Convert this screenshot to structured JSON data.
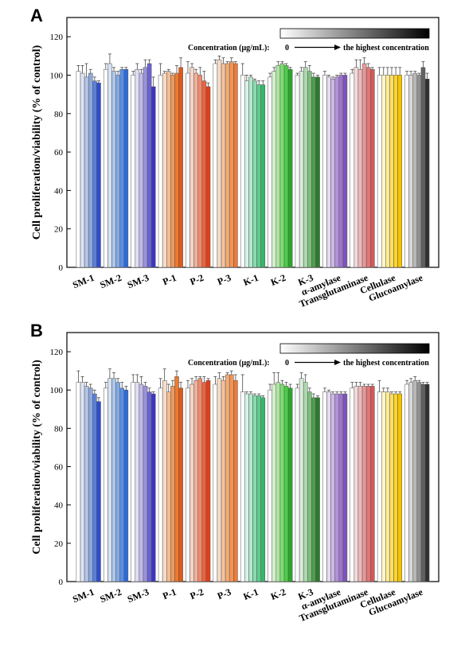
{
  "chart_data": [
    {
      "panel": "A",
      "type": "bar",
      "ylabel": "Cell proliferation/viability (% of control)",
      "ylim": [
        0,
        130
      ],
      "yticks": [
        0,
        20,
        40,
        60,
        80,
        100,
        120
      ],
      "legend": {
        "label": "Concentration (μg/mL):",
        "start": "0",
        "end": "the highest concentration",
        "placement": "top-right"
      },
      "groups": [
        {
          "name": "SM-1",
          "colors": [
            "#ffffff",
            "#dce3f2",
            "#b6c5e6",
            "#8ea8dc",
            "#5d80d6",
            "#2b4fd0"
          ],
          "values": [
            102,
            101,
            99,
            101,
            97,
            96
          ],
          "errors": [
            3,
            4,
            7,
            2,
            2,
            1
          ]
        },
        {
          "name": "SM-2",
          "colors": [
            "#ffffff",
            "#d6e4f4",
            "#aec8ec",
            "#83aae6",
            "#5a8ee6",
            "#2f6ad6"
          ],
          "values": [
            103,
            106,
            102,
            100,
            103,
            103
          ],
          "errors": [
            3,
            5,
            2,
            2,
            1,
            1
          ]
        },
        {
          "name": "SM-3",
          "colors": [
            "#ffffff",
            "#e0ddf2",
            "#c1bbe8",
            "#9a93dc",
            "#6a62d2",
            "#3b35c4"
          ],
          "values": [
            100,
            103,
            101,
            104,
            106,
            94
          ],
          "errors": [
            2,
            3,
            2,
            4,
            2,
            5
          ]
        },
        {
          "name": "P-1",
          "colors": [
            "#ffffff",
            "#f7dcc8",
            "#f2bd96",
            "#ed9a60",
            "#ec7b30",
            "#e0591a"
          ],
          "values": [
            100,
            101,
            102,
            100,
            101,
            104
          ],
          "errors": [
            6,
            1,
            1,
            1,
            4,
            5
          ]
        },
        {
          "name": "P-2",
          "colors": [
            "#ffffff",
            "#f7d4c8",
            "#f2b09a",
            "#ee8a6c",
            "#ea6440",
            "#e03e1a"
          ],
          "values": [
            101,
            104,
            101,
            100,
            97,
            94
          ],
          "errors": [
            6,
            2,
            2,
            4,
            5,
            2
          ]
        },
        {
          "name": "P-3",
          "colors": [
            "#ffffff",
            "#f8dcc6",
            "#f4c39c",
            "#f2ab76",
            "#f29556",
            "#ee7a36"
          ],
          "values": [
            106,
            108,
            106,
            106,
            107,
            106
          ],
          "errors": [
            2,
            2,
            3,
            1,
            2,
            1
          ]
        },
        {
          "name": "K-1",
          "colors": [
            "#ffffff",
            "#d8f2e6",
            "#b4e8cc",
            "#88dcae",
            "#5ccd8e",
            "#33b86a"
          ],
          "values": [
            100,
            97,
            99,
            97,
            95,
            95
          ],
          "errors": [
            6,
            3,
            1,
            1,
            2,
            2
          ]
        },
        {
          "name": "K-2",
          "colors": [
            "#ffffff",
            "#d4f0cc",
            "#acE6a0",
            "#7edc72",
            "#4ccc48",
            "#2aa62a"
          ],
          "values": [
            99,
            102,
            105,
            106,
            105,
            103
          ],
          "errors": [
            2,
            2,
            2,
            1,
            1,
            1
          ]
        },
        {
          "name": "K-3",
          "colors": [
            "#ffffff",
            "#d8ecd8",
            "#aed8ae",
            "#7fbe7f",
            "#4e9e4e",
            "#2e7a2e"
          ],
          "values": [
            100,
            102,
            104,
            102,
            99,
            99
          ],
          "errors": [
            1,
            2,
            3,
            3,
            2,
            1
          ]
        },
        {
          "name": "α-amylase",
          "colors": [
            "#ffffff",
            "#e6dcf2",
            "#cdb8e6",
            "#b292d8",
            "#9a74cc",
            "#7e52bc"
          ],
          "values": [
            100,
            99,
            98,
            99,
            100,
            100
          ],
          "errors": [
            2,
            1,
            1,
            1,
            1,
            1
          ]
        },
        {
          "name": "Transglutaminase",
          "colors": [
            "#ffffff",
            "#f4dada",
            "#eebcbc",
            "#e89898",
            "#e07878",
            "#d45858"
          ],
          "values": [
            101,
            104,
            103,
            106,
            104,
            103
          ],
          "errors": [
            2,
            4,
            5,
            3,
            2,
            1
          ]
        },
        {
          "name": "Cellulase",
          "colors": [
            "#ffffff",
            "#fff6c8",
            "#ffec96",
            "#ffe060",
            "#ffd430",
            "#f5c400"
          ],
          "values": [
            100,
            100,
            100,
            100,
            100,
            100
          ],
          "errors": [
            4,
            4,
            4,
            4,
            4,
            4
          ]
        },
        {
          "name": "Glucoamylase",
          "colors": [
            "#ffffff",
            "#d8d8d8",
            "#b8b8b8",
            "#909090",
            "#606060",
            "#303030"
          ],
          "values": [
            100,
            100,
            101,
            100,
            104,
            98
          ],
          "errors": [
            2,
            2,
            1,
            1,
            3,
            3
          ]
        }
      ]
    },
    {
      "panel": "B",
      "type": "bar",
      "ylabel": "Cell proliferation/viability (% of control)",
      "ylim": [
        0,
        130
      ],
      "yticks": [
        0,
        20,
        40,
        60,
        80,
        100,
        120
      ],
      "legend": {
        "label": "Concentration (μg/mL):",
        "start": "0",
        "end": "the highest concentration",
        "placement": "top-right"
      },
      "groups": [
        {
          "name": "SM-1",
          "colors": [
            "#ffffff",
            "#dce3f2",
            "#b6c5e6",
            "#8ea8dc",
            "#5d80d6",
            "#2b4fd0"
          ],
          "values": [
            104,
            104,
            102,
            101,
            98,
            94
          ],
          "errors": [
            6,
            3,
            2,
            2,
            2,
            2
          ]
        },
        {
          "name": "SM-2",
          "colors": [
            "#ffffff",
            "#d6e4f4",
            "#aec8ec",
            "#83aae6",
            "#5a8ee6",
            "#2f6ad6"
          ],
          "values": [
            101,
            106,
            106,
            104,
            101,
            100
          ],
          "errors": [
            3,
            5,
            3,
            2,
            3,
            2
          ]
        },
        {
          "name": "SM-3",
          "colors": [
            "#ffffff",
            "#e0ddf2",
            "#c1bbe8",
            "#9a93dc",
            "#6a62d2",
            "#3b35c4"
          ],
          "values": [
            104,
            104,
            103,
            102,
            99,
            98
          ],
          "errors": [
            4,
            4,
            4,
            2,
            2,
            1
          ]
        },
        {
          "name": "P-1",
          "colors": [
            "#ffffff",
            "#f7dcc8",
            "#f2bd96",
            "#ed9a60",
            "#ec7b30",
            "#e0591a"
          ],
          "values": [
            101,
            105,
            99,
            102,
            107,
            101
          ],
          "errors": [
            5,
            6,
            4,
            3,
            3,
            3
          ]
        },
        {
          "name": "P-2",
          "colors": [
            "#ffffff",
            "#f7d4c8",
            "#f2b09a",
            "#ee8a6c",
            "#ea6440",
            "#e03e1a"
          ],
          "values": [
            101,
            103,
            105,
            106,
            104,
            105
          ],
          "errors": [
            4,
            3,
            2,
            1,
            3,
            1
          ]
        },
        {
          "name": "P-3",
          "colors": [
            "#ffffff",
            "#f8dcc6",
            "#f4c39c",
            "#f2ab76",
            "#f29556",
            "#ee7a36"
          ],
          "values": [
            103,
            106,
            105,
            108,
            108,
            105
          ],
          "errors": [
            4,
            3,
            2,
            1,
            2,
            3
          ]
        },
        {
          "name": "K-1",
          "colors": [
            "#ffffff",
            "#d8f2e6",
            "#b4e8cc",
            "#88dcae",
            "#5ccd8e",
            "#33b86a"
          ],
          "values": [
            99,
            98,
            98,
            97,
            97,
            96
          ],
          "errors": [
            9,
            1,
            1,
            1,
            1,
            1
          ]
        },
        {
          "name": "K-2",
          "colors": [
            "#ffffff",
            "#d4f0cc",
            "#acE6a0",
            "#7edc72",
            "#4ccc48",
            "#2aa62a"
          ],
          "values": [
            100,
            103,
            104,
            103,
            102,
            101
          ],
          "errors": [
            3,
            6,
            5,
            2,
            2,
            2
          ]
        },
        {
          "name": "K-3",
          "colors": [
            "#ffffff",
            "#d8ecd8",
            "#aed8ae",
            "#7fbe7f",
            "#4e9e4e",
            "#2e7a2e"
          ],
          "values": [
            101,
            106,
            104,
            99,
            96,
            96
          ],
          "errors": [
            2,
            3,
            4,
            2,
            2,
            1
          ]
        },
        {
          "name": "α-amylase",
          "colors": [
            "#ffffff",
            "#e6dcf2",
            "#cdb8e6",
            "#b292d8",
            "#9a74cc",
            "#7e52bc"
          ],
          "values": [
            99,
            99,
            98,
            98,
            98,
            98
          ],
          "errors": [
            2,
            1,
            1,
            1,
            1,
            1
          ]
        },
        {
          "name": "Transglutaminase",
          "colors": [
            "#ffffff",
            "#f4dada",
            "#eebcbc",
            "#e89898",
            "#e07878",
            "#d45858"
          ],
          "values": [
            101,
            102,
            102,
            102,
            102,
            102
          ],
          "errors": [
            3,
            2,
            2,
            1,
            1,
            1
          ]
        },
        {
          "name": "Cellulase",
          "colors": [
            "#ffffff",
            "#fff6c8",
            "#ffec96",
            "#ffe060",
            "#ffd430",
            "#f5c400"
          ],
          "values": [
            99,
            99,
            99,
            98,
            98,
            98
          ],
          "errors": [
            6,
            2,
            2,
            1,
            1,
            1
          ]
        },
        {
          "name": "Glucoamylase",
          "colors": [
            "#ffffff",
            "#d8d8d8",
            "#b8b8b8",
            "#909090",
            "#606060",
            "#303030"
          ],
          "values": [
            103,
            104,
            105,
            104,
            103,
            103
          ],
          "errors": [
            2,
            2,
            2,
            1,
            1,
            1
          ]
        }
      ]
    }
  ]
}
